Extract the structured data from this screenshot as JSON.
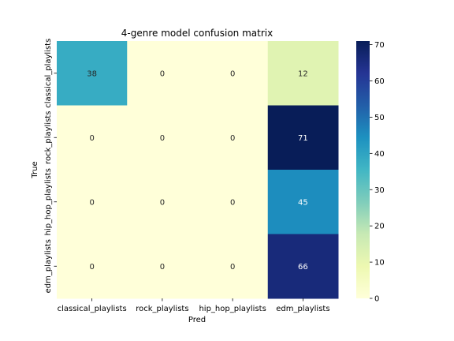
{
  "chart_data": {
    "type": "heatmap",
    "title": "4-genre model confusion matrix",
    "xlabel": "Pred",
    "ylabel": "True",
    "x_categories": [
      "classical_playlists",
      "rock_playlists",
      "hip_hop_playlists",
      "edm_playlists"
    ],
    "y_categories": [
      "classical_playlists",
      "rock_playlists",
      "hip_hop_playlists",
      "edm_playlists"
    ],
    "values": [
      [
        38,
        0,
        0,
        12
      ],
      [
        0,
        0,
        0,
        71
      ],
      [
        0,
        0,
        0,
        45
      ],
      [
        0,
        0,
        0,
        66
      ]
    ],
    "colorbar": {
      "range": [
        0,
        71
      ],
      "ticks": [
        0,
        10,
        20,
        30,
        40,
        50,
        60,
        70
      ],
      "colormap": "YlGnBu"
    }
  }
}
